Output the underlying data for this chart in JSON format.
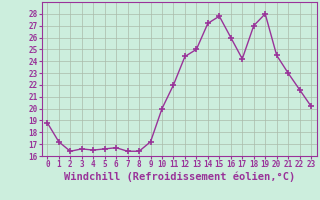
{
  "hours": [
    0,
    1,
    2,
    3,
    4,
    5,
    6,
    7,
    8,
    9,
    10,
    11,
    12,
    13,
    14,
    15,
    16,
    17,
    18,
    19,
    20,
    21,
    22,
    23
  ],
  "values": [
    18.8,
    17.2,
    16.4,
    16.6,
    16.5,
    16.6,
    16.7,
    16.4,
    16.4,
    17.2,
    20.0,
    22.0,
    24.4,
    25.0,
    27.2,
    27.8,
    26.0,
    24.2,
    27.0,
    28.0,
    24.5,
    23.0,
    21.6,
    20.2
  ],
  "line_color": "#993399",
  "marker": "+",
  "marker_size": 4,
  "bg_color": "#cceedd",
  "grid_color": "#aabbaa",
  "xlabel": "Windchill (Refroidissement éolien,°C)",
  "ylim": [
    16,
    29
  ],
  "yticks": [
    16,
    17,
    18,
    19,
    20,
    21,
    22,
    23,
    24,
    25,
    26,
    27,
    28
  ],
  "xticks": [
    0,
    1,
    2,
    3,
    4,
    5,
    6,
    7,
    8,
    9,
    10,
    11,
    12,
    13,
    14,
    15,
    16,
    17,
    18,
    19,
    20,
    21,
    22,
    23
  ],
  "tick_fontsize": 5.5,
  "xlabel_fontsize": 7.5,
  "xlabel_color": "#993399",
  "line_width": 1.0,
  "marker_color": "#993399"
}
